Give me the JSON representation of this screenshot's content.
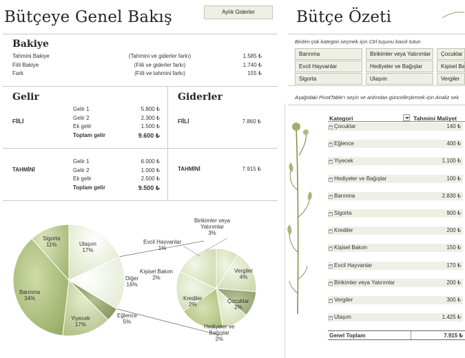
{
  "left": {
    "title": "Bütçeye Genel Bakış",
    "monthly_button": "Aylık Giderler",
    "balance": {
      "heading": "Bakiye",
      "rows": [
        {
          "label": "Tahmini Bakiye",
          "note": "(Tahmini ve giderler farkı)",
          "value": "1.585 ₺"
        },
        {
          "label": "Fiili Bakiye",
          "note": "(Fiili ve giderler farkı)",
          "value": "1.740 ₺"
        },
        {
          "label": "Fark",
          "note": "(Fiili ve tahmini farkı)",
          "value": "155 ₺"
        }
      ]
    },
    "income": {
      "heading": "Gelir",
      "actual": {
        "label": "FİİLİ",
        "rows": [
          {
            "label": "Gelir 1",
            "value": "5.800 ₺"
          },
          {
            "label": "Gelir 2",
            "value": "2.300 ₺"
          },
          {
            "label": "Ek gelir",
            "value": "1.500 ₺"
          }
        ],
        "total_label": "Toplam gelir",
        "total_value": "9.600 ₺"
      },
      "estimated": {
        "label": "TAHMİNİ",
        "rows": [
          {
            "label": "Gelir 1",
            "value": "6.000 ₺"
          },
          {
            "label": "Gelir 2",
            "value": "1.000 ₺"
          },
          {
            "label": "Ek gelir",
            "value": "2.500 ₺"
          }
        ],
        "total_label": "Toplam gelir",
        "total_value": "9.500 ₺"
      }
    },
    "expenses": {
      "heading": "Giderler",
      "actual_label": "FİİLİ",
      "actual_value": "7.860 ₺",
      "estimated_label": "TAHMİNİ",
      "estimated_value": "7.915 ₺"
    },
    "pie_labels": {
      "sigorta": [
        "Sigorta",
        "11%"
      ],
      "ulasim": [
        "Ulaşım",
        "17%"
      ],
      "barinma": [
        "Barınma",
        "34%"
      ],
      "yiyecek": [
        "Yiyecek",
        "17%"
      ],
      "eglence": [
        "Eğlence",
        "5%"
      ],
      "diger": [
        "Diğer",
        "16%"
      ],
      "evcil": [
        "Evcil Hayvanlar",
        "1%"
      ],
      "birikim": [
        "Birikimler veya",
        "Yatırımlar",
        "3%"
      ],
      "kisisel": [
        "Kişisel Bakım",
        "2%"
      ],
      "vergiler": [
        "Vergiler",
        "4%"
      ],
      "krediler": [
        "Krediler",
        "2%"
      ],
      "cocuklar": [
        "Çocuklar",
        "2%"
      ],
      "hediye": [
        "Hediyeler ve",
        "Bağışlar",
        "2%"
      ]
    }
  },
  "right": {
    "title": "Bütçe Özeti",
    "hint": "Birden çok kategori seçmek için Ctrl tuşunu basılı tutun",
    "slicer": [
      "Barınma",
      "Birikimler veya Yatırımlar",
      "Çocuklar",
      "Evcil Hayvanlar",
      "Hediyeler ve Bağışlar",
      "Kişisel Ba",
      "Sigorta",
      "Ulaşım",
      "Vergiler"
    ],
    "pivot_hint": "Aşağıdaki PivotTable'ı seçin ve ardından güncelleştirmek için Analiz sek",
    "pivot": {
      "col_category": "Kategori",
      "col_cost": "Tahmini Maliyet",
      "rows": [
        {
          "label": "Çocuklar",
          "value": "140 ₺"
        },
        {
          "label": "Eğlence",
          "value": "400 ₺"
        },
        {
          "label": "Yiyecek",
          "value": "1.100 ₺"
        },
        {
          "label": "Hediyeler ve Bağışlar",
          "value": "100 ₺"
        },
        {
          "label": "Barınma",
          "value": "2.830 ₺"
        },
        {
          "label": "Sigorta",
          "value": "900 ₺"
        },
        {
          "label": "Krediler",
          "value": "200 ₺"
        },
        {
          "label": "Kişisel Bakım",
          "value": "150 ₺"
        },
        {
          "label": "Evcil Hayvanlar",
          "value": "170 ₺"
        },
        {
          "label": "Birikimler veya Yatırımlar",
          "value": "200 ₺"
        },
        {
          "label": "Vergiler",
          "value": "300 ₺"
        },
        {
          "label": "Ulaşım",
          "value": "1.425 ₺"
        }
      ],
      "total_label": "Genel Toplam",
      "total_value": "7.915 ₺"
    }
  }
}
